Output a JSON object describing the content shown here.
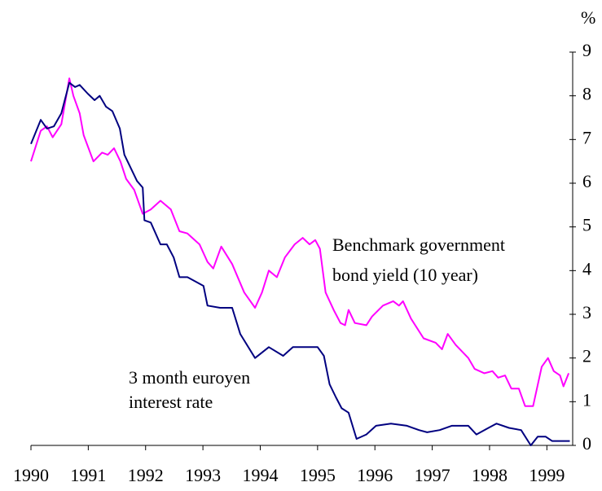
{
  "chart_data": {
    "type": "line",
    "y_label": "%",
    "xlim": [
      1990,
      1999.45
    ],
    "xticks": [
      1990,
      1991,
      1992,
      1993,
      1994,
      1995,
      1996,
      1997,
      1998,
      1999
    ],
    "ylim": [
      0,
      9
    ],
    "yticks": [
      0,
      1,
      2,
      3,
      4,
      5,
      6,
      7,
      8,
      9
    ],
    "series": [
      {
        "name": "Benchmark government bond yield (10 year)",
        "label_lines": [
          "Benchmark government",
          "bond yield (10 year)"
        ],
        "color": "#ff00ff",
        "x": [
          1990.0,
          1990.17,
          1990.28,
          1990.38,
          1990.53,
          1990.67,
          1990.74,
          1990.85,
          1990.92,
          1991.09,
          1991.24,
          1991.34,
          1991.45,
          1991.56,
          1991.66,
          1991.8,
          1991.95,
          1992.09,
          1992.26,
          1992.44,
          1992.59,
          1992.73,
          1992.94,
          1993.08,
          1993.18,
          1993.32,
          1993.51,
          1993.72,
          1993.91,
          1994.03,
          1994.15,
          1994.29,
          1994.43,
          1994.6,
          1994.74,
          1994.86,
          1994.96,
          1995.04,
          1995.14,
          1995.28,
          1995.4,
          1995.48,
          1995.54,
          1995.65,
          1995.85,
          1995.95,
          1996.14,
          1996.32,
          1996.42,
          1996.49,
          1996.63,
          1996.85,
          1997.06,
          1997.17,
          1997.27,
          1997.41,
          1997.63,
          1997.74,
          1997.91,
          1998.05,
          1998.15,
          1998.27,
          1998.38,
          1998.51,
          1998.62,
          1998.76,
          1998.91,
          1999.02,
          1999.12,
          1999.23,
          1999.29,
          1999.38
        ],
        "values": [
          6.5,
          7.2,
          7.3,
          7.05,
          7.35,
          8.4,
          8.0,
          7.6,
          7.1,
          6.5,
          6.7,
          6.65,
          6.8,
          6.5,
          6.1,
          5.85,
          5.3,
          5.4,
          5.6,
          5.4,
          4.9,
          4.85,
          4.6,
          4.2,
          4.05,
          4.55,
          4.15,
          3.5,
          3.15,
          3.5,
          4.0,
          3.85,
          4.3,
          4.6,
          4.75,
          4.6,
          4.7,
          4.5,
          3.5,
          3.1,
          2.8,
          2.75,
          3.1,
          2.8,
          2.75,
          2.95,
          3.2,
          3.3,
          3.2,
          3.3,
          2.9,
          2.45,
          2.35,
          2.2,
          2.55,
          2.3,
          2.0,
          1.75,
          1.65,
          1.7,
          1.55,
          1.6,
          1.3,
          1.3,
          0.9,
          0.9,
          1.8,
          2.0,
          1.7,
          1.6,
          1.35,
          1.65
        ]
      },
      {
        "name": "3 month euroyen interest rate",
        "label_lines": [
          "3 month euroyen",
          "interest rate"
        ],
        "color": "#000080",
        "x": [
          1990.0,
          1990.17,
          1990.28,
          1990.4,
          1990.53,
          1990.67,
          1990.77,
          1990.85,
          1990.99,
          1991.11,
          1991.2,
          1991.31,
          1991.42,
          1991.55,
          1991.63,
          1991.85,
          1991.95,
          1991.98,
          1992.09,
          1992.26,
          1992.37,
          1992.49,
          1992.59,
          1992.73,
          1992.87,
          1993.01,
          1993.08,
          1993.3,
          1993.51,
          1993.65,
          1993.91,
          1994.15,
          1994.4,
          1994.57,
          1995.0,
          1995.11,
          1995.21,
          1995.32,
          1995.42,
          1995.54,
          1995.68,
          1995.85,
          1996.02,
          1996.28,
          1996.56,
          1996.77,
          1996.91,
          1997.13,
          1997.34,
          1997.63,
          1997.77,
          1997.98,
          1998.12,
          1998.34,
          1998.55,
          1998.72,
          1998.84,
          1998.98,
          1999.09,
          1999.4
        ],
        "values": [
          6.9,
          7.45,
          7.25,
          7.3,
          7.6,
          8.3,
          8.2,
          8.25,
          8.05,
          7.9,
          8.0,
          7.75,
          7.65,
          7.25,
          6.65,
          6.05,
          5.9,
          5.15,
          5.1,
          4.6,
          4.6,
          4.3,
          3.85,
          3.85,
          3.75,
          3.65,
          3.2,
          3.15,
          3.15,
          2.55,
          2.0,
          2.25,
          2.05,
          2.25,
          2.25,
          2.05,
          1.4,
          1.1,
          0.85,
          0.75,
          0.15,
          0.25,
          0.45,
          0.5,
          0.45,
          0.35,
          0.3,
          0.35,
          0.45,
          0.45,
          0.25,
          0.4,
          0.5,
          0.4,
          0.35,
          0.0,
          0.2,
          0.2,
          0.1,
          0.1
        ]
      }
    ]
  }
}
